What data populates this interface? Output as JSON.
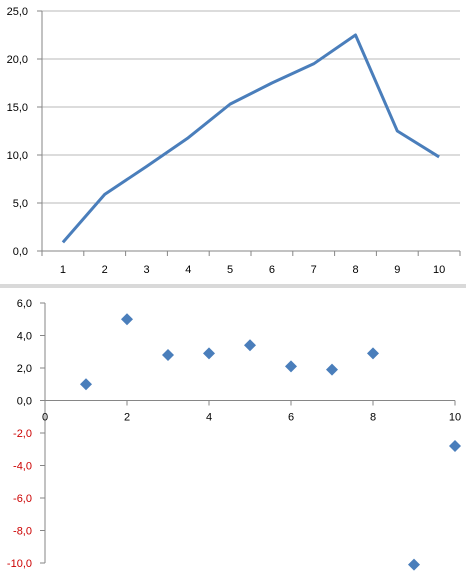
{
  "colors": {
    "line": "#4a7ebb",
    "marker": "#4a7ebb",
    "grid": "#b9b9b9",
    "axis": "#868686",
    "negative_label": "#cc0000"
  },
  "chart_data": [
    {
      "type": "line",
      "categories": [
        "1",
        "2",
        "3",
        "4",
        "5",
        "6",
        "7",
        "8",
        "9",
        "10"
      ],
      "series": [
        {
          "values": [
            0.9,
            5.9,
            8.8,
            11.8,
            15.3,
            17.5,
            19.5,
            22.5,
            12.5,
            9.8
          ]
        }
      ],
      "ylim": [
        0,
        25
      ],
      "yticks": [
        "0,0",
        "5,0",
        "10,0",
        "15,0",
        "20,0",
        "25,0"
      ],
      "grid": true
    },
    {
      "type": "scatter",
      "series": [
        {
          "points": [
            [
              1,
              1.0
            ],
            [
              2,
              5.0
            ],
            [
              3,
              2.8
            ],
            [
              4,
              2.9
            ],
            [
              5,
              3.4
            ],
            [
              6,
              2.1
            ],
            [
              7,
              1.9
            ],
            [
              8,
              2.9
            ],
            [
              9,
              -10.1
            ],
            [
              10,
              -2.8
            ]
          ]
        }
      ],
      "xlim": [
        0,
        10
      ],
      "ylim": [
        -10,
        6
      ],
      "xticks": [
        "0",
        "2",
        "4",
        "6",
        "8",
        "10"
      ],
      "yticks": [
        "6,0",
        "4,0",
        "2,0",
        "0,0",
        "-2,0",
        "-4,0",
        "-6,0",
        "-8,0",
        "-10,0"
      ],
      "grid": false
    }
  ]
}
